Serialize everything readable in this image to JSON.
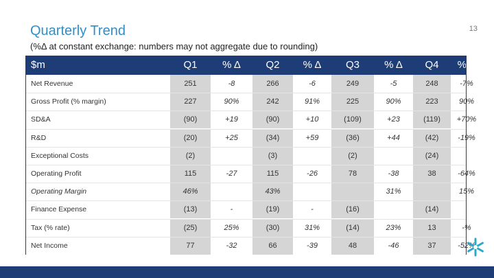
{
  "header": {
    "title": "Quarterly Trend",
    "subtitle": "(%Δ at constant exchange: numbers may not aggregate due to rounding)",
    "page_number": "13"
  },
  "table": {
    "columns": [
      "$m",
      "Q1",
      "% Δ",
      "Q2",
      "% Δ",
      "Q3",
      "% Δ",
      "Q4",
      "% Δ"
    ],
    "rows": [
      {
        "label": "Net Revenue",
        "cells": [
          "251",
          "-8",
          "266",
          "-6",
          "249",
          "-5",
          "248",
          "-7%"
        ]
      },
      {
        "label": "Gross Profit (% margin)",
        "cells": [
          "227",
          "90%",
          "242",
          "91%",
          "225",
          "90%",
          "223",
          "90%"
        ]
      },
      {
        "label": "SD&A",
        "cells": [
          "(90)",
          "+19",
          "(90)",
          "+10",
          "(109)",
          "+23",
          "(119)",
          "+70%"
        ]
      },
      {
        "label": "R&D",
        "cells": [
          "(20)",
          "+25",
          "(34)",
          "+59",
          "(36)",
          "+44",
          "(42)",
          "-19%"
        ]
      },
      {
        "label": "Exceptional Costs",
        "cells": [
          "(2)",
          "",
          "(3)",
          "",
          "(2)",
          "",
          "(24)",
          ""
        ]
      },
      {
        "label": "Operating Profit",
        "cells": [
          "115",
          "-27",
          "115",
          "-26",
          "78",
          "-38",
          "38",
          "-64%"
        ]
      },
      {
        "label": "Operating Margin",
        "cells": [
          "46%",
          "",
          "43%",
          "",
          "",
          "31%",
          "",
          "15%"
        ]
      },
      {
        "label": "Finance Expense",
        "cells": [
          "(13)",
          "-",
          "(19)",
          "-",
          "(16)",
          "",
          "(14)",
          ""
        ]
      },
      {
        "label": "Tax  (% rate)",
        "cells": [
          "(25)",
          "25%",
          "(30)",
          "31%",
          "(14)",
          "23%",
          "13",
          "-%"
        ]
      },
      {
        "label": "Net Income",
        "cells": [
          "77",
          "-32",
          "66",
          "-39",
          "48",
          "-46",
          "37",
          "-52%"
        ]
      }
    ]
  },
  "colors": {
    "accent": "#2f8fc8",
    "header_bg": "#1e3d76",
    "shade": "#d5d5d5",
    "logo_color": "#29a8c7"
  },
  "icons": {
    "logo": "snowflake-logo-icon"
  }
}
